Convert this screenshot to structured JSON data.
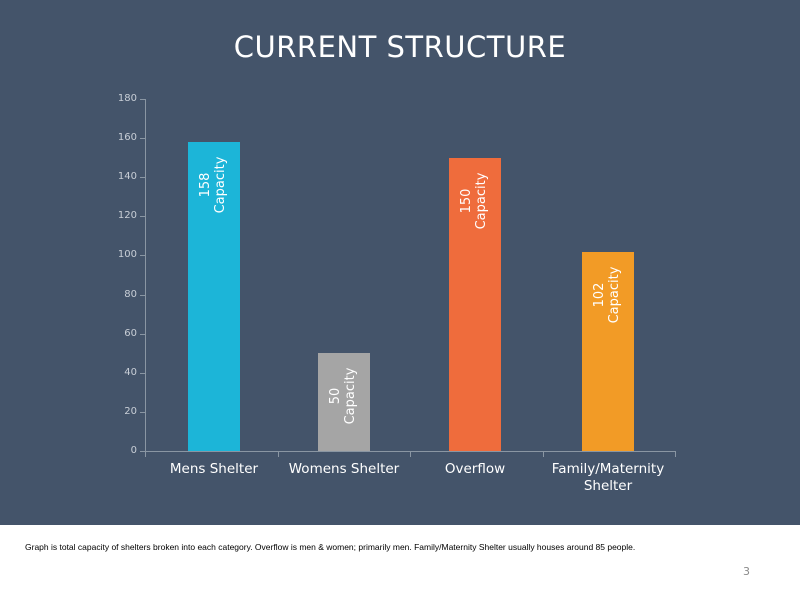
{
  "slide": {
    "title": "CURRENT STRUCTURE",
    "footnote": "Graph is total capacity of shelters broken into each category.  Overflow is men & women; primarily men.  Family/Maternity Shelter usually houses around 85 people.",
    "page_number": "3",
    "background_color": "#44546a"
  },
  "chart_data": {
    "type": "bar",
    "title": "CURRENT STRUCTURE",
    "xlabel": "",
    "ylabel": "",
    "categories": [
      "Mens Shelter",
      "Womens Shelter",
      "Overflow",
      "Family/Maternity Shelter"
    ],
    "category_lines": [
      [
        "Mens Shelter"
      ],
      [
        "Womens Shelter"
      ],
      [
        "Overflow"
      ],
      [
        "Family/Maternity",
        "Shelter"
      ]
    ],
    "values": [
      158,
      50,
      150,
      102
    ],
    "colors": [
      "#1cb5d8",
      "#a5a5a5",
      "#ef6c3c",
      "#f29b26"
    ],
    "data_labels": [
      {
        "value": "158",
        "unit": "Capacity"
      },
      {
        "value": "50",
        "unit": "Capacity"
      },
      {
        "value": "150",
        "unit": "Capacity"
      },
      {
        "value": "102",
        "unit": "Capacity"
      }
    ],
    "ylim": [
      0,
      180
    ],
    "yticks": [
      "0",
      "20",
      "40",
      "60",
      "80",
      "100",
      "120",
      "140",
      "160",
      "180"
    ],
    "grid": false,
    "legend": "none"
  }
}
